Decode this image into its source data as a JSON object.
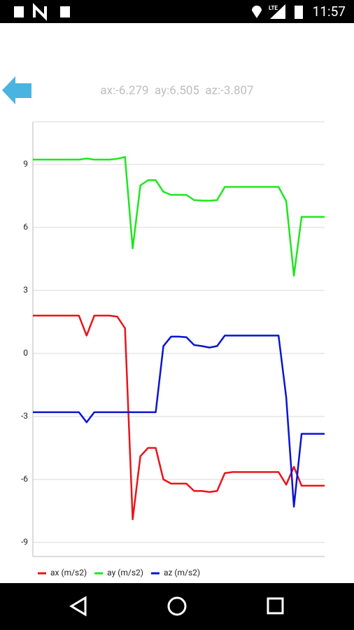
{
  "status_bar": {
    "network": "LTE",
    "time": "11:57"
  },
  "readout": "ax:-6.279  ay:6.505  az:-3.807",
  "chart_data": {
    "type": "line",
    "x": [
      0,
      1,
      2,
      3,
      4,
      5,
      6,
      7,
      8,
      9,
      10,
      11,
      12,
      13,
      14,
      15,
      16,
      17,
      18,
      19,
      20,
      21,
      22,
      23,
      24,
      25,
      26,
      27,
      28,
      29,
      30,
      31,
      32,
      33,
      34,
      35,
      36,
      37,
      38
    ],
    "xlim": [
      0,
      38
    ],
    "ylim": [
      -9.67,
      11.03
    ],
    "yticks": [
      -9,
      -6,
      -3,
      0,
      3,
      6,
      9
    ],
    "grid": true,
    "legend": "bottom-left",
    "series": [
      {
        "name": "ax (m/s2)",
        "color": "#e8141b",
        "values": [
          1.8,
          1.8,
          1.8,
          1.8,
          1.8,
          1.8,
          1.8,
          0.85,
          1.8,
          1.8,
          1.8,
          1.75,
          1.2,
          -7.9,
          -4.9,
          -4.5,
          -4.5,
          -6.0,
          -6.2,
          -6.2,
          -6.2,
          -6.55,
          -6.55,
          -6.6,
          -6.55,
          -5.7,
          -5.65,
          -5.65,
          -5.65,
          -5.65,
          -5.65,
          -5.65,
          -5.65,
          -6.25,
          -5.4,
          -6.3,
          -6.3,
          -6.3,
          -6.3
        ]
      },
      {
        "name": "ay (m/s2)",
        "color": "#1ee61e",
        "values": [
          9.23,
          9.23,
          9.23,
          9.23,
          9.23,
          9.23,
          9.23,
          9.28,
          9.23,
          9.23,
          9.23,
          9.27,
          9.35,
          5.0,
          8.0,
          8.25,
          8.25,
          7.7,
          7.55,
          7.55,
          7.55,
          7.3,
          7.28,
          7.27,
          7.3,
          7.93,
          7.93,
          7.93,
          7.93,
          7.93,
          7.93,
          7.93,
          7.93,
          7.25,
          3.7,
          6.5,
          6.5,
          6.5,
          6.5
        ]
      },
      {
        "name": "az (m/s2)",
        "color": "#0a14d2",
        "values": [
          -2.8,
          -2.8,
          -2.8,
          -2.8,
          -2.8,
          -2.8,
          -2.8,
          -3.28,
          -2.8,
          -2.8,
          -2.8,
          -2.8,
          -2.8,
          -2.8,
          -2.8,
          -2.8,
          -2.8,
          0.35,
          0.8,
          0.8,
          0.77,
          0.4,
          0.35,
          0.28,
          0.35,
          0.85,
          0.85,
          0.85,
          0.85,
          0.85,
          0.85,
          0.85,
          0.85,
          -2.1,
          -7.3,
          -3.83,
          -3.83,
          -3.83,
          -3.83
        ]
      }
    ]
  }
}
